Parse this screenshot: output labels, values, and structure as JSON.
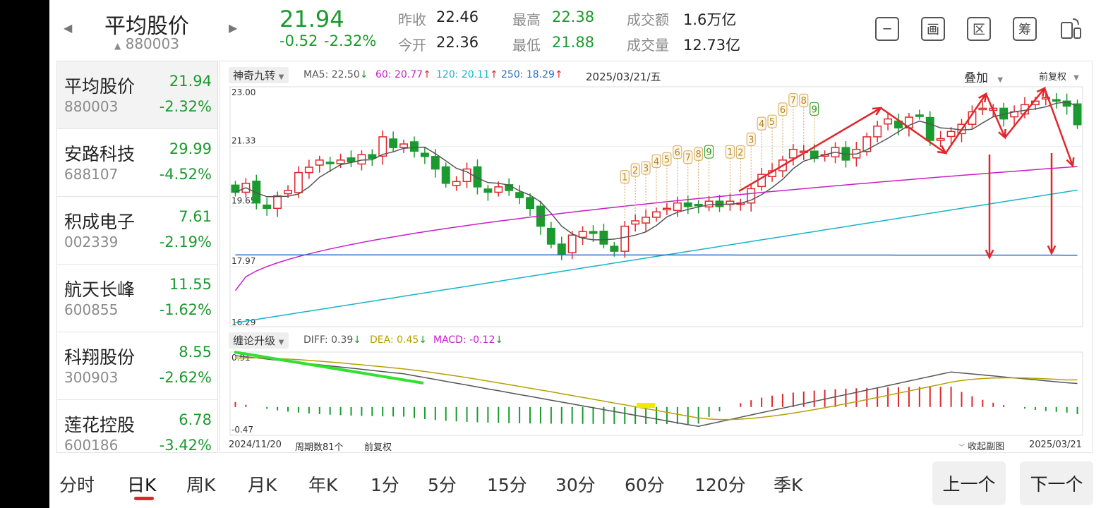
{
  "header": {
    "name": "平均股价",
    "code": "880003",
    "price": "21.94",
    "change": "-0.52",
    "change_pct": "-2.32%",
    "prev_close_label": "昨收",
    "prev_close": "22.46",
    "open_label": "今开",
    "open": "22.36",
    "high_label": "最高",
    "high": "22.38",
    "low_label": "最低",
    "low": "21.88",
    "amount_label": "成交额",
    "amount": "1.6万亿",
    "volume_label": "成交量",
    "volume": "12.73亿",
    "icons": [
      "minus-box-icon",
      "画",
      "区",
      "筹",
      "phone-rotate-icon"
    ]
  },
  "sidebar": {
    "items": [
      {
        "name": "平均股价",
        "code": "880003",
        "price": "21.94",
        "change": "-2.32%"
      },
      {
        "name": "安路科技",
        "code": "688107",
        "price": "29.99",
        "change": "-4.52%"
      },
      {
        "name": "积成电子",
        "code": "002339",
        "price": "7.61",
        "change": "-2.19%"
      },
      {
        "name": "航天长峰",
        "code": "600855",
        "price": "11.55",
        "change": "-1.62%"
      },
      {
        "name": "科翔股份",
        "code": "300903",
        "price": "8.55",
        "change": "-2.62%"
      },
      {
        "name": "莲花控股",
        "code": "600186",
        "price": "6.78",
        "change": "-3.42%"
      }
    ]
  },
  "chart": {
    "indicator_chip": "神奇九转",
    "ma": [
      {
        "label": "MA5: 22.50",
        "arrow": "↓",
        "color": "#555555"
      },
      {
        "label": "60: 20.77",
        "arrow": "↑",
        "color": "#c81ec8"
      },
      {
        "label": "120: 20.11",
        "arrow": "↑",
        "color": "#17b4c9"
      },
      {
        "label": "250: 18.29",
        "arrow": "↑",
        "color": "#2a6fc9"
      }
    ],
    "date_label": "2025/03/21/五",
    "overlay_label": "叠加",
    "adjust_label": "前复权",
    "y_ticks": [
      "23.00",
      "21.33",
      "19.65",
      "17.97",
      "16.29"
    ],
    "macd_chip": "缠论升级",
    "diff_label": "DIFF: 0.39",
    "diff_arrow": "↓",
    "dea_label": "DEA: 0.45",
    "dea_arrow": "↓",
    "macd_label": "MACD: -0.12",
    "macd_arrow": "↓",
    "macd_ticks": [
      "0.91",
      "-0.47"
    ],
    "start_date": "2024/11/20",
    "period_count": "周期数81个",
    "adjust_footer": "前复权",
    "collapse_label": "收起副图",
    "end_date": "2025/03/21",
    "nine_turn_a": [
      "1",
      "2",
      "3",
      "4",
      "5",
      "6",
      "7",
      "8",
      "9"
    ],
    "nine_turn_b": [
      "1",
      "2",
      "3",
      "4",
      "5",
      "6",
      "7",
      "8",
      "9"
    ]
  },
  "chart_data": {
    "type": "candlestick",
    "ylim": [
      16.29,
      23.0
    ],
    "close": [
      20.05,
      20.3,
      19.75,
      19.6,
      19.95,
      20.1,
      20.6,
      20.75,
      20.95,
      20.85,
      20.95,
      20.9,
      21.1,
      21.0,
      21.6,
      21.3,
      21.4,
      21.2,
      21.05,
      20.7,
      20.3,
      20.35,
      20.7,
      20.2,
      20.05,
      20.2,
      20.1,
      19.9,
      19.6,
      19.1,
      18.6,
      18.3,
      18.85,
      18.95,
      18.9,
      18.6,
      18.4,
      19.1,
      19.25,
      19.35,
      19.5,
      19.6,
      19.75,
      19.65,
      19.7,
      19.8,
      19.65,
      19.8,
      19.75,
      20.15,
      20.55,
      20.65,
      20.95,
      21.25,
      21.2,
      21.0,
      21.1,
      21.3,
      20.95,
      21.25,
      21.6,
      21.9,
      22.1,
      21.85,
      22.15,
      22.2,
      21.5,
      21.55,
      21.75,
      21.95,
      22.3,
      22.4,
      22.4,
      22.1,
      22.3,
      22.5,
      22.6,
      22.7,
      22.6,
      22.46,
      21.94
    ],
    "ma_last": {
      "ma5": 22.5,
      "ma60": 20.77,
      "ma120": 20.11,
      "ma250": 18.29
    },
    "macd": {
      "diff": 0.39,
      "dea": 0.45,
      "macd": -0.12,
      "ylim": [
        -0.47,
        0.91
      ]
    }
  },
  "tabs": {
    "items": [
      "分时",
      "日K",
      "周K",
      "月K",
      "年K",
      "1分",
      "5分",
      "15分",
      "30分",
      "60分",
      "120分",
      "季K"
    ],
    "active": 1,
    "prev_button": "上一个",
    "next_button": "下一个"
  }
}
